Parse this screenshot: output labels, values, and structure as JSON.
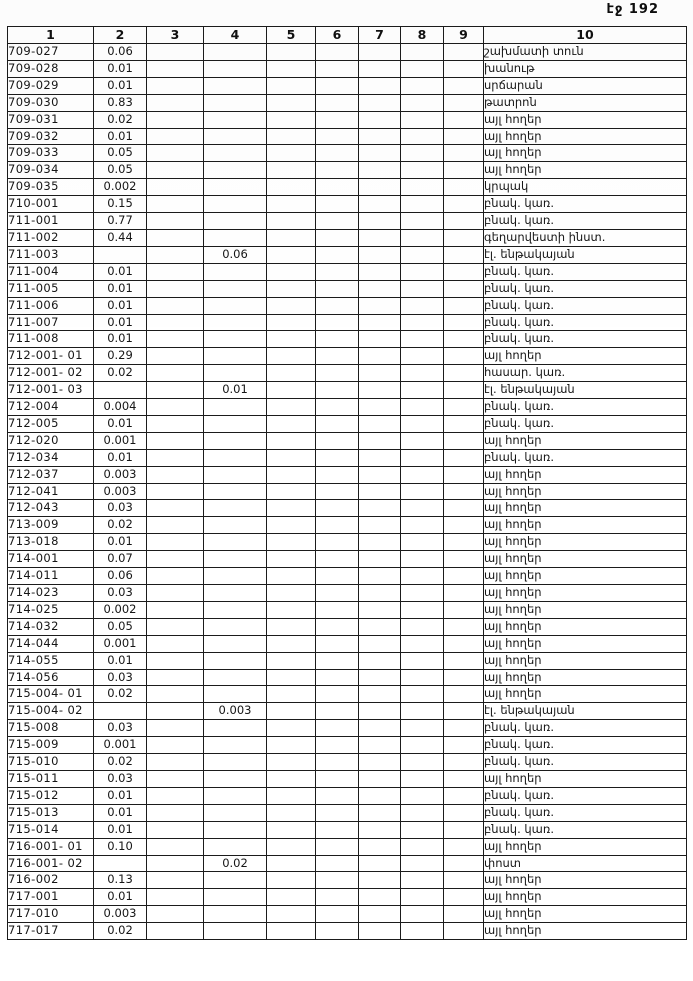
{
  "page": {
    "page_label": "էջ 192"
  },
  "table": {
    "headers": [
      "1",
      "2",
      "3",
      "4",
      "5",
      "6",
      "7",
      "8",
      "9",
      "10"
    ],
    "rows": [
      {
        "id": "709-027",
        "col2": "0.06",
        "col4": "",
        "col10": "շախմատի տուն"
      },
      {
        "id": "709-028",
        "col2": "0.01",
        "col4": "",
        "col10": "խանութ"
      },
      {
        "id": "709-029",
        "col2": "0.01",
        "col4": "",
        "col10": "սրճարան"
      },
      {
        "id": "709-030",
        "col2": "0.83",
        "col4": "",
        "col10": "թատրոն"
      },
      {
        "id": "709-031",
        "col2": "0.02",
        "col4": "",
        "col10": "այլ հողեր"
      },
      {
        "id": "709-032",
        "col2": "0.01",
        "col4": "",
        "col10": "այլ հողեր"
      },
      {
        "id": "709-033",
        "col2": "0.05",
        "col4": "",
        "col10": "այլ հողեր"
      },
      {
        "id": "709-034",
        "col2": "0.05",
        "col4": "",
        "col10": "այլ հողեր"
      },
      {
        "id": "709-035",
        "col2": "0.002",
        "col4": "",
        "col10": "կրպակ"
      },
      {
        "id": "710-001",
        "col2": "0.15",
        "col4": "",
        "col10": "բնակ. կառ."
      },
      {
        "id": "711-001",
        "col2": "0.77",
        "col4": "",
        "col10": "բնակ. կառ."
      },
      {
        "id": "711-002",
        "col2": "0.44",
        "col4": "",
        "col10": "գեղարվեստի ինստ."
      },
      {
        "id": "711-003",
        "col2": "",
        "col4": "0.06",
        "col10": "էլ. ենթակայան"
      },
      {
        "id": "711-004",
        "col2": "0.01",
        "col4": "",
        "col10": "բնակ. կառ."
      },
      {
        "id": "711-005",
        "col2": "0.01",
        "col4": "",
        "col10": "բնակ. կառ."
      },
      {
        "id": "711-006",
        "col2": "0.01",
        "col4": "",
        "col10": "բնակ. կառ."
      },
      {
        "id": "711-007",
        "col2": "0.01",
        "col4": "",
        "col10": "բնակ. կառ."
      },
      {
        "id": "711-008",
        "col2": "0.01",
        "col4": "",
        "col10": "բնակ. կառ."
      },
      {
        "id": "712-001- 01",
        "col2": "0.29",
        "col4": "",
        "col10": "այլ հողեր"
      },
      {
        "id": "712-001- 02",
        "col2": "0.02",
        "col4": "",
        "col10": "հասար. կառ."
      },
      {
        "id": "712-001- 03",
        "col2": "",
        "col4": "0.01",
        "col10": "էլ. ենթակայան"
      },
      {
        "id": "712-004",
        "col2": "0.004",
        "col4": "",
        "col10": "բնակ. կառ."
      },
      {
        "id": "712-005",
        "col2": "0.01",
        "col4": "",
        "col10": "բնակ. կառ."
      },
      {
        "id": "712-020",
        "col2": "0.001",
        "col4": "",
        "col10": "այլ հողեր"
      },
      {
        "id": "712-034",
        "col2": "0.01",
        "col4": "",
        "col10": "բնակ. կառ."
      },
      {
        "id": "712-037",
        "col2": "0.003",
        "col4": "",
        "col10": "այլ հողեր"
      },
      {
        "id": "712-041",
        "col2": "0.003",
        "col4": "",
        "col10": "այլ հողեր"
      },
      {
        "id": "712-043",
        "col2": "0.03",
        "col4": "",
        "col10": "այլ հողեր"
      },
      {
        "id": "713-009",
        "col2": "0.02",
        "col4": "",
        "col10": "այլ հողեր"
      },
      {
        "id": "713-018",
        "col2": "0.01",
        "col4": "",
        "col10": "այլ հողեր"
      },
      {
        "id": "714-001",
        "col2": "0.07",
        "col4": "",
        "col10": "այլ հողեր"
      },
      {
        "id": "714-011",
        "col2": "0.06",
        "col4": "",
        "col10": "այլ հողեր"
      },
      {
        "id": "714-023",
        "col2": "0.03",
        "col4": "",
        "col10": "այլ հողեր"
      },
      {
        "id": "714-025",
        "col2": "0.002",
        "col4": "",
        "col10": "այլ հողեր"
      },
      {
        "id": "714-032",
        "col2": "0.05",
        "col4": "",
        "col10": "այլ հողեր"
      },
      {
        "id": "714-044",
        "col2": "0.001",
        "col4": "",
        "col10": "այլ հողեր"
      },
      {
        "id": "714-055",
        "col2": "0.01",
        "col4": "",
        "col10": "այլ հողեր"
      },
      {
        "id": "714-056",
        "col2": "0.03",
        "col4": "",
        "col10": "այլ հողեր"
      },
      {
        "id": "715-004- 01",
        "col2": "0.02",
        "col4": "",
        "col10": "այլ հողեր"
      },
      {
        "id": "715-004- 02",
        "col2": "",
        "col4": "0.003",
        "col10": "էլ. ենթակայան"
      },
      {
        "id": "715-008",
        "col2": "0.03",
        "col4": "",
        "col10": "բնակ. կառ."
      },
      {
        "id": "715-009",
        "col2": "0.001",
        "col4": "",
        "col10": "բնակ. կառ."
      },
      {
        "id": "715-010",
        "col2": "0.02",
        "col4": "",
        "col10": "բնակ. կառ."
      },
      {
        "id": "715-011",
        "col2": "0.03",
        "col4": "",
        "col10": "այլ հողեր"
      },
      {
        "id": "715-012",
        "col2": "0.01",
        "col4": "",
        "col10": "բնակ. կառ."
      },
      {
        "id": "715-013",
        "col2": "0.01",
        "col4": "",
        "col10": "բնակ. կառ."
      },
      {
        "id": "715-014",
        "col2": "0.01",
        "col4": "",
        "col10": "բնակ. կառ."
      },
      {
        "id": "716-001- 01",
        "col2": "0.10",
        "col4": "",
        "col10": "այլ հողեր"
      },
      {
        "id": "716-001- 02",
        "col2": "",
        "col4": "0.02",
        "col10": "փոստ"
      },
      {
        "id": "716-002",
        "col2": "0.13",
        "col4": "",
        "col10": "այլ հողեր"
      },
      {
        "id": "717-001",
        "col2": "0.01",
        "col4": "",
        "col10": "այլ հողեր"
      },
      {
        "id": "717-010",
        "col2": "0.003",
        "col4": "",
        "col10": "այլ հողեր"
      },
      {
        "id": "717-017",
        "col2": "0.02",
        "col4": "",
        "col10": "այլ հողեր"
      }
    ]
  }
}
